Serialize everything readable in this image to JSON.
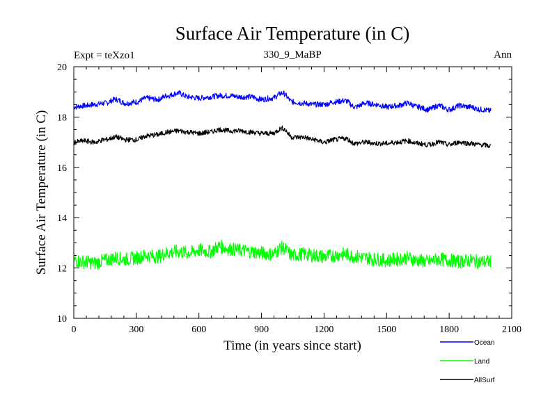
{
  "chart_data": {
    "type": "line",
    "title": "Surface Air Temperature (in C)",
    "subtitle": "330_9_MaBP",
    "left_note": "Expt = teXzo1",
    "right_note": "Ann",
    "xlabel": "Time (in years since start)",
    "ylabel": "Surface Air Temperature (in C)",
    "xlim": [
      0,
      2100
    ],
    "ylim": [
      10,
      20
    ],
    "x_ticks": [
      0,
      300,
      600,
      900,
      1200,
      1500,
      1800,
      2100
    ],
    "x_tick_labels": [
      "0",
      "300",
      "600",
      "900",
      "1200",
      "1500",
      "1800",
      "2100"
    ],
    "y_ticks": [
      10,
      12,
      14,
      16,
      18,
      20
    ],
    "y_tick_labels": [
      "10",
      "12",
      "14",
      "16",
      "18",
      "20"
    ],
    "x": [
      0,
      50,
      100,
      150,
      200,
      250,
      300,
      350,
      400,
      450,
      500,
      550,
      600,
      650,
      700,
      750,
      800,
      850,
      900,
      950,
      1000,
      1050,
      1100,
      1150,
      1200,
      1250,
      1300,
      1350,
      1400,
      1450,
      1500,
      1550,
      1600,
      1650,
      1700,
      1750,
      1800,
      1850,
      1900,
      1950,
      2000
    ],
    "series": [
      {
        "name": "Ocean",
        "color": "#0000ff",
        "values": [
          18.4,
          18.45,
          18.5,
          18.55,
          18.7,
          18.55,
          18.6,
          18.75,
          18.7,
          18.85,
          18.95,
          18.8,
          18.75,
          18.8,
          18.85,
          18.85,
          18.8,
          18.8,
          18.7,
          18.75,
          18.95,
          18.6,
          18.55,
          18.5,
          18.5,
          18.6,
          18.65,
          18.4,
          18.55,
          18.5,
          18.4,
          18.45,
          18.55,
          18.4,
          18.3,
          18.45,
          18.3,
          18.45,
          18.4,
          18.3,
          18.25
        ]
      },
      {
        "name": "Land",
        "color": "#00ff00",
        "values": [
          12.3,
          12.25,
          12.2,
          12.3,
          12.4,
          12.35,
          12.4,
          12.5,
          12.45,
          12.6,
          12.65,
          12.6,
          12.7,
          12.65,
          12.85,
          12.75,
          12.7,
          12.65,
          12.6,
          12.55,
          12.8,
          12.5,
          12.55,
          12.5,
          12.45,
          12.5,
          12.55,
          12.45,
          12.4,
          12.35,
          12.3,
          12.35,
          12.4,
          12.3,
          12.25,
          12.35,
          12.3,
          12.25,
          12.3,
          12.25,
          12.25
        ]
      },
      {
        "name": "AllSurf",
        "color": "#000000",
        "values": [
          17.0,
          17.05,
          17.0,
          17.1,
          17.2,
          17.1,
          17.1,
          17.25,
          17.3,
          17.4,
          17.45,
          17.4,
          17.35,
          17.4,
          17.5,
          17.45,
          17.45,
          17.4,
          17.35,
          17.35,
          17.55,
          17.2,
          17.2,
          17.1,
          17.0,
          17.1,
          17.15,
          16.95,
          17.0,
          16.95,
          16.95,
          17.0,
          17.05,
          16.95,
          16.9,
          17.0,
          16.9,
          17.0,
          16.95,
          16.9,
          16.85
        ]
      }
    ],
    "legend_position": "bottom-right"
  }
}
